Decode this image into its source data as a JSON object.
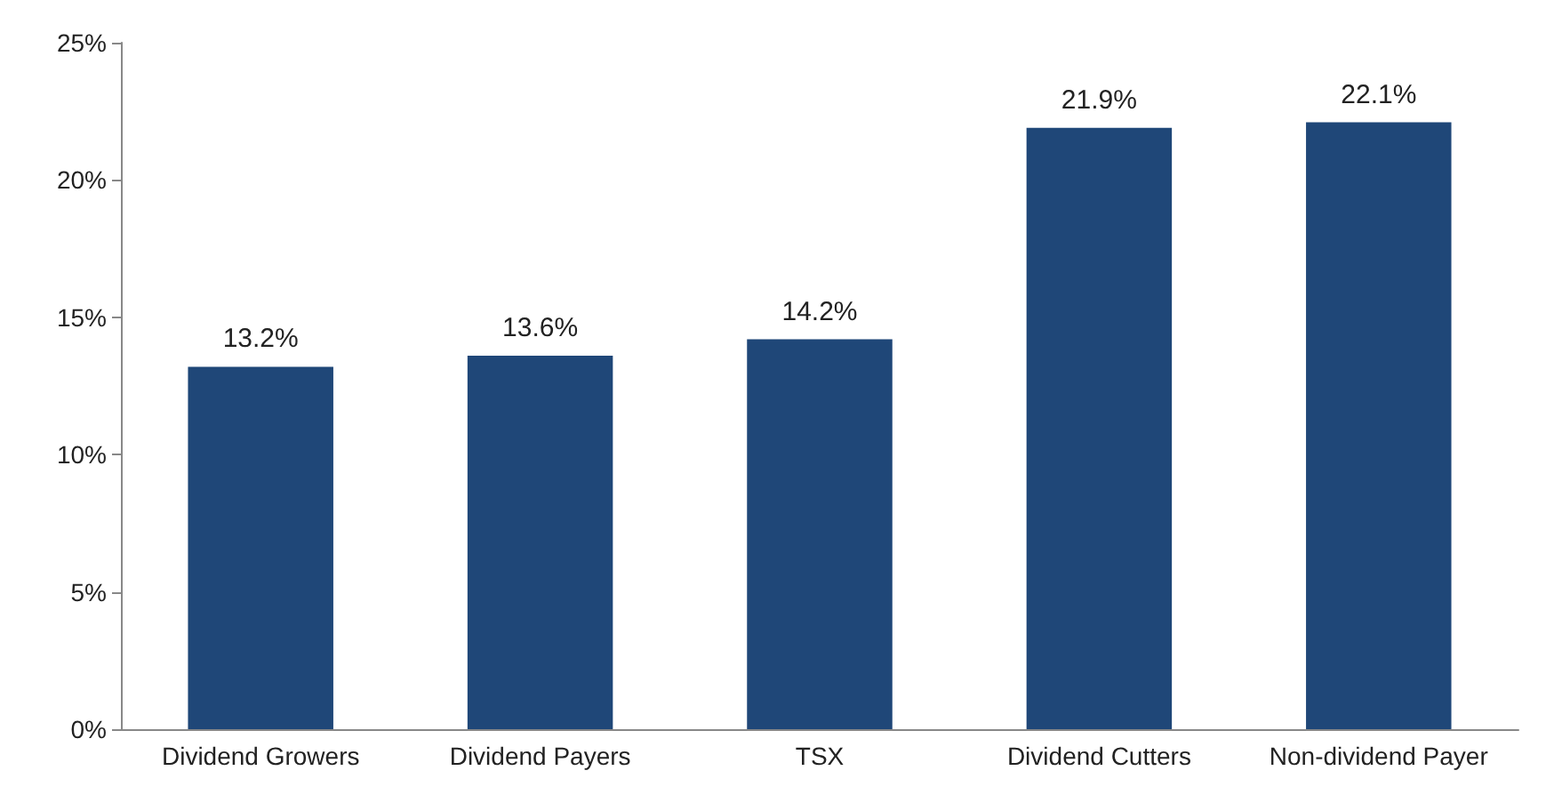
{
  "chart_data": {
    "type": "bar",
    "categories": [
      "Dividend Growers",
      "Dividend Payers",
      "TSX",
      "Dividend Cutters",
      "Non-dividend Payer"
    ],
    "values": [
      13.2,
      13.6,
      14.2,
      21.9,
      22.1
    ],
    "value_labels": [
      "13.2%",
      "13.6%",
      "14.2%",
      "21.9%",
      "22.1%"
    ],
    "color": "#1f4778",
    "ylim": [
      0,
      25
    ],
    "yticks": [
      {
        "value": 0,
        "label": "0%"
      },
      {
        "value": 5,
        "label": "5%"
      },
      {
        "value": 10,
        "label": "10%"
      },
      {
        "value": 15,
        "label": "15%"
      },
      {
        "value": 20,
        "label": "20%"
      },
      {
        "value": 25,
        "label": "25%"
      }
    ],
    "grid": false
  }
}
